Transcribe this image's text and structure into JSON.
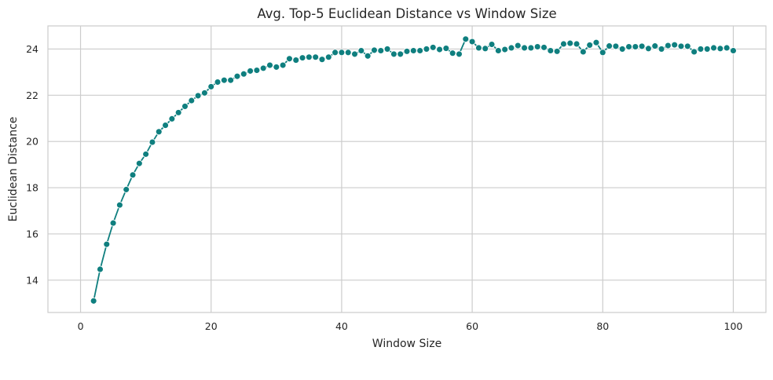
{
  "chart_data": {
    "type": "line",
    "title": "Avg. Top-5 Euclidean Distance vs Window Size",
    "xlabel": "Window Size",
    "ylabel": "Euclidean Distance",
    "xlim": [
      -5,
      105
    ],
    "ylim": [
      12.6,
      25.0
    ],
    "xticks": [
      0,
      20,
      40,
      60,
      80,
      100
    ],
    "yticks": [
      14,
      16,
      18,
      20,
      22,
      24
    ],
    "grid": true,
    "legend": "none",
    "color": "#0f7f7f",
    "marker": "circle",
    "x": [
      2,
      3,
      4,
      5,
      6,
      7,
      8,
      9,
      10,
      11,
      12,
      13,
      14,
      15,
      16,
      17,
      18,
      19,
      20,
      21,
      22,
      23,
      24,
      25,
      26,
      27,
      28,
      29,
      30,
      31,
      32,
      33,
      34,
      35,
      36,
      37,
      38,
      39,
      40,
      41,
      42,
      43,
      44,
      45,
      46,
      47,
      48,
      49,
      50,
      51,
      52,
      53,
      54,
      55,
      56,
      57,
      58,
      59,
      60,
      61,
      62,
      63,
      64,
      65,
      66,
      67,
      68,
      69,
      70,
      71,
      72,
      73,
      74,
      75,
      76,
      77,
      78,
      79,
      80,
      81,
      82,
      83,
      84,
      85,
      86,
      87,
      88,
      89,
      90,
      91,
      92,
      93,
      94,
      95,
      96,
      97,
      98,
      99,
      100
    ],
    "y": [
      13.1,
      14.47,
      15.55,
      16.47,
      17.25,
      17.92,
      18.55,
      19.05,
      19.45,
      19.97,
      20.42,
      20.7,
      20.98,
      21.25,
      21.52,
      21.77,
      21.98,
      22.1,
      22.37,
      22.57,
      22.65,
      22.65,
      22.82,
      22.92,
      23.05,
      23.08,
      23.17,
      23.3,
      23.22,
      23.3,
      23.58,
      23.52,
      23.62,
      23.65,
      23.65,
      23.55,
      23.65,
      23.85,
      23.85,
      23.85,
      23.78,
      23.93,
      23.7,
      23.95,
      23.93,
      24.0,
      23.78,
      23.78,
      23.9,
      23.93,
      23.93,
      24.0,
      24.07,
      23.98,
      24.03,
      23.82,
      23.78,
      24.43,
      24.32,
      24.05,
      24.02,
      24.2,
      23.93,
      23.98,
      24.05,
      24.15,
      24.05,
      24.05,
      24.1,
      24.07,
      23.93,
      23.9,
      24.22,
      24.25,
      24.22,
      23.88,
      24.17,
      24.28,
      23.85,
      24.13,
      24.12,
      24.0,
      24.1,
      24.1,
      24.12,
      24.02,
      24.13,
      24.0,
      24.15,
      24.18,
      24.12,
      24.12,
      23.88,
      24.0,
      24.0,
      24.05,
      24.02,
      24.05,
      23.93
    ]
  }
}
